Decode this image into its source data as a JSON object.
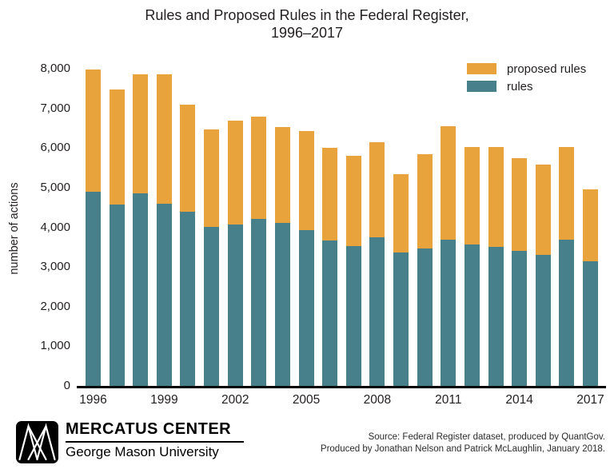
{
  "title": {
    "line1": "Rules and Proposed Rules in the Federal Register,",
    "line2": "1996–2017"
  },
  "y_axis_title": "number of actions",
  "legend": {
    "items": [
      {
        "label": "proposed rules",
        "color": "#E9A33C"
      },
      {
        "label": "rules",
        "color": "#477F8B"
      }
    ]
  },
  "chart_data": {
    "type": "bar",
    "stacked": true,
    "title": "Rules and Proposed Rules in the Federal Register, 1996–2017",
    "xlabel": "",
    "ylabel": "number of actions",
    "ylim": [
      0,
      8000
    ],
    "yticks": [
      0,
      1000,
      2000,
      3000,
      4000,
      5000,
      6000,
      7000,
      8000
    ],
    "xticks": [
      1996,
      1999,
      2002,
      2005,
      2008,
      2011,
      2014,
      2017
    ],
    "grid": false,
    "legend_position": "top-right",
    "categories": [
      1996,
      1997,
      1998,
      1999,
      2000,
      2001,
      2002,
      2003,
      2004,
      2005,
      2006,
      2007,
      2008,
      2009,
      2010,
      2011,
      2012,
      2013,
      2014,
      2015,
      2016,
      2017
    ],
    "series": [
      {
        "name": "rules",
        "color": "#477F8B",
        "values": [
          4890,
          4580,
          4850,
          4600,
          4400,
          4020,
          4080,
          4210,
          4110,
          3920,
          3660,
          3530,
          3750,
          3370,
          3470,
          3690,
          3560,
          3510,
          3400,
          3300,
          3690,
          3150
        ]
      },
      {
        "name": "proposed rules",
        "color": "#E9A33C",
        "values": [
          3090,
          2890,
          3010,
          3250,
          2690,
          2450,
          2620,
          2580,
          2410,
          2500,
          2340,
          2280,
          2400,
          1980,
          2370,
          2860,
          2470,
          2520,
          2340,
          2280,
          2330,
          1800
        ]
      }
    ]
  },
  "footer": {
    "logo_title": "MERCATUS CENTER",
    "logo_subtitle": "George Mason University",
    "source_line1": "Source: Federal Register dataset, produced by QuantGov.",
    "source_line2": "Produced by Jonathan Nelson and Patrick McLaughlin, January 2018."
  }
}
